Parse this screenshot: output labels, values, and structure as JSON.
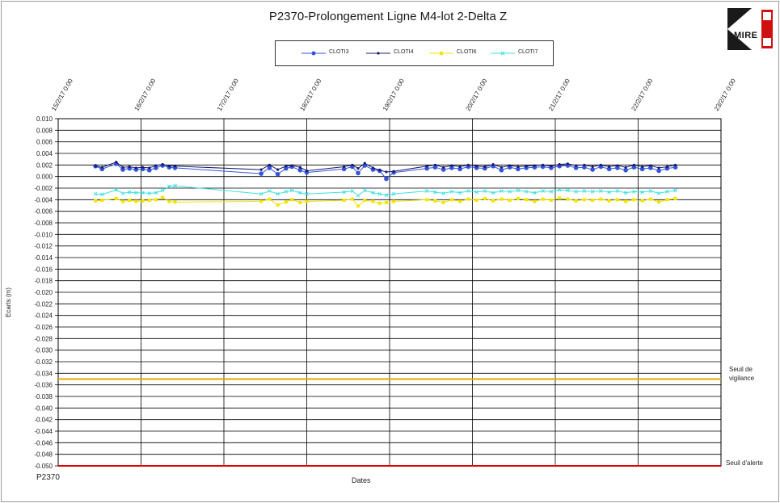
{
  "chart_data": {
    "type": "line",
    "title": "P2370-Prolongement Ligne M4-lot 2-Delta Z",
    "xlabel": "Dates",
    "ylabel": "Ecarts (m)",
    "ylim": [
      -0.05,
      0.01
    ],
    "y_ticks": [
      "0.010",
      "0.008",
      "0.006",
      "0.004",
      "0.002",
      "0.000",
      "-0.002",
      "-0.004",
      "-0.006",
      "-0.008",
      "-0.010",
      "-0.012",
      "-0.014",
      "-0.016",
      "-0.018",
      "-0.020",
      "-0.022",
      "-0.024",
      "-0.026",
      "-0.028",
      "-0.030",
      "-0.032",
      "-0.034",
      "-0.036",
      "-0.038",
      "-0.040",
      "-0.042",
      "-0.044",
      "-0.046",
      "-0.048",
      "-0.050"
    ],
    "x_ticks": [
      "15/2/17 0:00",
      "16/2/17 0:00",
      "17/2/17 0:00",
      "18/2/17 0:00",
      "19/2/17 0:00",
      "20/2/17 0:00",
      "21/2/17 0:00",
      "22/2/17 0:00",
      "23/2/17 0:00"
    ],
    "x_unit": "days from 15/2/17 0:00",
    "legend_position": "top-center",
    "grid": true,
    "series": [
      {
        "name": "CLOTI3",
        "color": "#3355dd",
        "marker": "circle",
        "x": [
          0.45,
          0.53,
          0.7,
          0.78,
          0.86,
          0.94,
          1.02,
          1.1,
          1.18,
          1.26,
          1.34,
          1.41,
          2.45,
          2.55,
          2.65,
          2.75,
          2.82,
          2.92,
          3.0,
          3.45,
          3.55,
          3.62,
          3.7,
          3.8,
          3.88,
          3.96,
          4.05,
          4.45,
          4.55,
          4.65,
          4.75,
          4.85,
          4.95,
          5.05,
          5.15,
          5.25,
          5.35,
          5.45,
          5.55,
          5.65,
          5.75,
          5.85,
          5.95,
          6.05,
          6.15,
          6.25,
          6.35,
          6.45,
          6.55,
          6.65,
          6.75,
          6.85,
          6.95,
          7.05,
          7.15,
          7.25,
          7.35,
          7.45
        ],
        "values": [
          0.0018,
          0.0013,
          0.0022,
          0.0012,
          0.0014,
          0.0012,
          0.0013,
          0.0011,
          0.0015,
          0.0019,
          0.0016,
          0.0015,
          0.0005,
          0.0015,
          0.0004,
          0.0014,
          0.0017,
          0.0011,
          0.0007,
          0.0013,
          0.0017,
          0.0006,
          0.0019,
          0.0012,
          0.001,
          -0.0004,
          0.0007,
          0.0014,
          0.0016,
          0.0012,
          0.0015,
          0.0013,
          0.0017,
          0.0015,
          0.0014,
          0.0018,
          0.0011,
          0.0016,
          0.0013,
          0.0015,
          0.0016,
          0.0017,
          0.0015,
          0.0018,
          0.0019,
          0.0015,
          0.0016,
          0.0012,
          0.0017,
          0.0013,
          0.0015,
          0.0011,
          0.0016,
          0.0013,
          0.0015,
          0.001,
          0.0014,
          0.0016
        ]
      },
      {
        "name": "CLOTI4",
        "color": "#1a1a6e",
        "marker": "dot",
        "x": [
          0.45,
          0.53,
          0.7,
          0.78,
          0.86,
          0.94,
          1.02,
          1.1,
          1.18,
          1.26,
          1.34,
          1.41,
          2.45,
          2.55,
          2.65,
          2.75,
          2.82,
          2.92,
          3.0,
          3.45,
          3.55,
          3.62,
          3.7,
          3.8,
          3.88,
          3.96,
          4.05,
          4.45,
          4.55,
          4.65,
          4.75,
          4.85,
          4.95,
          5.05,
          5.15,
          5.25,
          5.35,
          5.45,
          5.55,
          5.65,
          5.75,
          5.85,
          5.95,
          6.05,
          6.15,
          6.25,
          6.35,
          6.45,
          6.55,
          6.65,
          6.75,
          6.85,
          6.95,
          7.05,
          7.15,
          7.25,
          7.35,
          7.45
        ],
        "values": [
          0.0018,
          0.0016,
          0.0025,
          0.0016,
          0.0017,
          0.0015,
          0.0016,
          0.0015,
          0.0019,
          0.0021,
          0.0018,
          0.0018,
          0.0012,
          0.002,
          0.0012,
          0.0018,
          0.0019,
          0.0016,
          0.001,
          0.0017,
          0.002,
          0.0014,
          0.0023,
          0.0015,
          0.0011,
          0.0008,
          0.0009,
          0.0018,
          0.002,
          0.0016,
          0.0019,
          0.0017,
          0.002,
          0.0018,
          0.0017,
          0.0021,
          0.0016,
          0.0019,
          0.0017,
          0.0018,
          0.0019,
          0.002,
          0.0018,
          0.0021,
          0.0022,
          0.0019,
          0.002,
          0.0017,
          0.002,
          0.0017,
          0.0019,
          0.0016,
          0.002,
          0.0017,
          0.0019,
          0.0015,
          0.0017,
          0.002
        ]
      },
      {
        "name": "CLOTI6",
        "color": "#f2e600",
        "marker": "square",
        "x": [
          0.45,
          0.53,
          0.7,
          0.78,
          0.86,
          0.94,
          1.02,
          1.1,
          1.18,
          1.26,
          1.34,
          1.41,
          2.45,
          2.55,
          2.65,
          2.75,
          2.82,
          2.92,
          3.0,
          3.45,
          3.55,
          3.62,
          3.7,
          3.8,
          3.88,
          3.96,
          4.05,
          4.45,
          4.55,
          4.65,
          4.75,
          4.85,
          4.95,
          5.05,
          5.15,
          5.25,
          5.35,
          5.45,
          5.55,
          5.65,
          5.75,
          5.85,
          5.95,
          6.05,
          6.15,
          6.25,
          6.35,
          6.45,
          6.55,
          6.65,
          6.75,
          6.85,
          6.95,
          7.05,
          7.15,
          7.25,
          7.35,
          7.45
        ],
        "values": [
          -0.0042,
          -0.0041,
          -0.0038,
          -0.0043,
          -0.0041,
          -0.0043,
          -0.0042,
          -0.0041,
          -0.004,
          -0.0036,
          -0.0043,
          -0.0044,
          -0.0043,
          -0.0039,
          -0.0049,
          -0.0044,
          -0.004,
          -0.0045,
          -0.0043,
          -0.0041,
          -0.0039,
          -0.0051,
          -0.0041,
          -0.0043,
          -0.0046,
          -0.0045,
          -0.0043,
          -0.004,
          -0.0042,
          -0.0045,
          -0.004,
          -0.0043,
          -0.0039,
          -0.0041,
          -0.0038,
          -0.0042,
          -0.0039,
          -0.0041,
          -0.0038,
          -0.004,
          -0.0043,
          -0.0039,
          -0.0041,
          -0.0037,
          -0.0039,
          -0.0042,
          -0.004,
          -0.0041,
          -0.0039,
          -0.0042,
          -0.004,
          -0.0043,
          -0.004,
          -0.0042,
          -0.0039,
          -0.0044,
          -0.004,
          -0.0038
        ]
      },
      {
        "name": "CLOTI7",
        "color": "#40e0e0",
        "marker": "x",
        "x": [
          0.45,
          0.53,
          0.7,
          0.78,
          0.86,
          0.94,
          1.02,
          1.1,
          1.18,
          1.26,
          1.34,
          1.41,
          2.45,
          2.55,
          2.65,
          2.75,
          2.82,
          2.92,
          3.0,
          3.45,
          3.55,
          3.62,
          3.7,
          3.8,
          3.88,
          3.96,
          4.05,
          4.45,
          4.55,
          4.65,
          4.75,
          4.85,
          4.95,
          5.05,
          5.15,
          5.25,
          5.35,
          5.45,
          5.55,
          5.65,
          5.75,
          5.85,
          5.95,
          6.05,
          6.15,
          6.25,
          6.35,
          6.45,
          6.55,
          6.65,
          6.75,
          6.85,
          6.95,
          7.05,
          7.15,
          7.25,
          7.35,
          7.45
        ],
        "values": [
          -0.003,
          -0.0031,
          -0.0023,
          -0.0029,
          -0.0027,
          -0.0028,
          -0.0028,
          -0.0029,
          -0.0028,
          -0.0024,
          -0.0017,
          -0.0016,
          -0.003,
          -0.0025,
          -0.003,
          -0.0026,
          -0.0024,
          -0.0028,
          -0.003,
          -0.0027,
          -0.0025,
          -0.0033,
          -0.0024,
          -0.0028,
          -0.003,
          -0.0032,
          -0.003,
          -0.0025,
          -0.0027,
          -0.0029,
          -0.0026,
          -0.0028,
          -0.0025,
          -0.0027,
          -0.0025,
          -0.0028,
          -0.0025,
          -0.0026,
          -0.0024,
          -0.0026,
          -0.0028,
          -0.0025,
          -0.0026,
          -0.0023,
          -0.0024,
          -0.0026,
          -0.0025,
          -0.0026,
          -0.0025,
          -0.0027,
          -0.0025,
          -0.0028,
          -0.0026,
          -0.0027,
          -0.0025,
          -0.0029,
          -0.0026,
          -0.0024
        ]
      }
    ],
    "thresholds": [
      {
        "label_line1": "Seuil de",
        "label_line2": "vigilance",
        "value": -0.035,
        "color": "#e0a800"
      },
      {
        "label_line1": "Seuil d'alerte",
        "label_line2": "",
        "value": -0.05,
        "color": "#e00000"
      }
    ]
  },
  "footer": {
    "code": "P2370"
  },
  "logo": {
    "text": "MIRE"
  }
}
